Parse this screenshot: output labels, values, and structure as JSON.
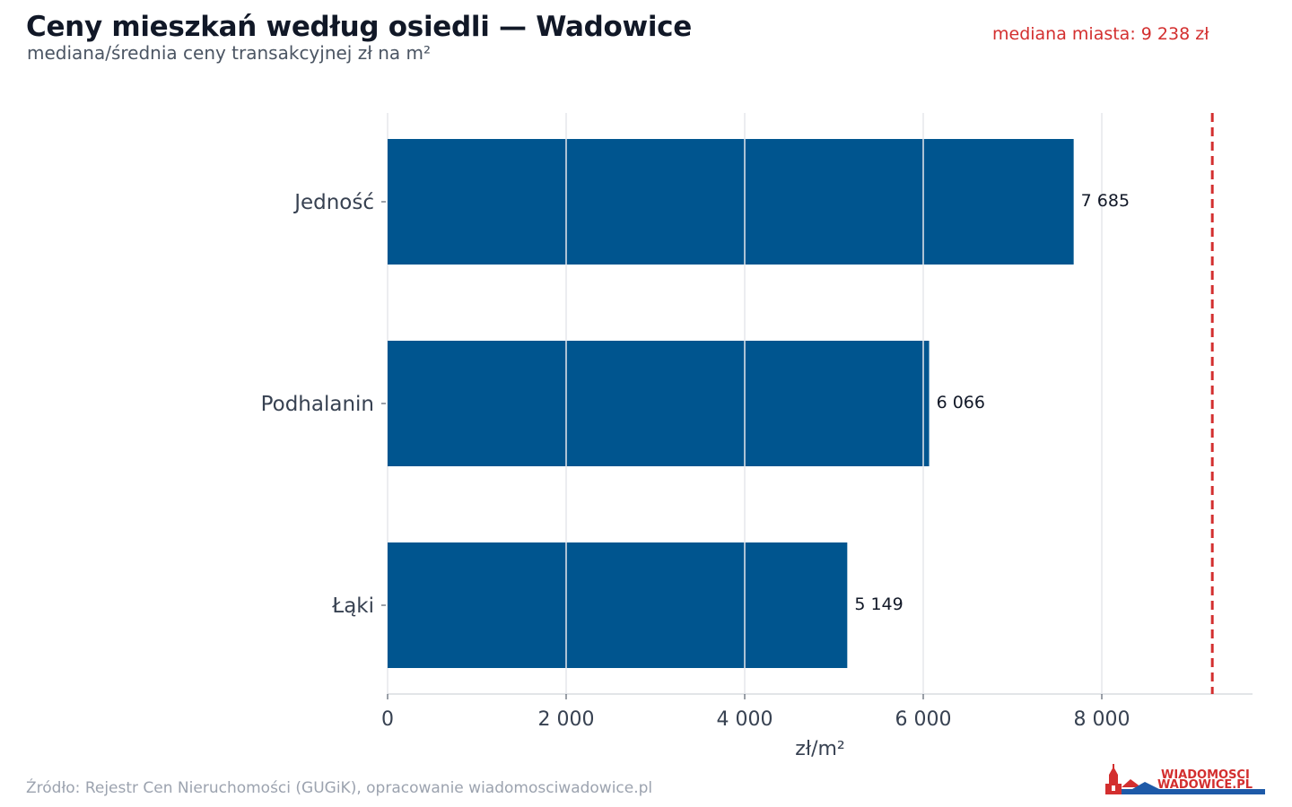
{
  "header": {
    "title": "Ceny mieszkań według osiedli — Wadowice",
    "subtitle": "mediana/średnia ceny transakcyjnej zł na m²",
    "median_label": "mediana miasta: 9 238 zł"
  },
  "footer": {
    "source": "Źródło: Rejestr Cen Nieruchomości (GUGiK), opracowanie wiadomosciwadowice.pl",
    "logo_line1": "WIADOMOSCI",
    "logo_line2": "WADOWICE.PL"
  },
  "colors": {
    "bar": "#00558f",
    "median_line": "#d32f2f",
    "grid": "#e5e7eb",
    "axis": "#d1d5db",
    "text_dark": "#111827",
    "text_axis": "#374151"
  },
  "chart_data": {
    "type": "bar",
    "orientation": "horizontal",
    "categories": [
      "Jedność",
      "Podhalanin",
      "Łąki"
    ],
    "values": [
      7685,
      6066,
      5149
    ],
    "value_labels": [
      "7 685",
      "6 066",
      "5 149"
    ],
    "xlabel": "zł/m²",
    "ylabel": "",
    "xlim": [
      0,
      9700
    ],
    "xticks": [
      0,
      2000,
      4000,
      6000,
      8000
    ],
    "xtick_labels": [
      "0",
      "2 000",
      "4 000",
      "6 000",
      "8 000"
    ],
    "reference_line": 9238,
    "grid": "vertical"
  }
}
